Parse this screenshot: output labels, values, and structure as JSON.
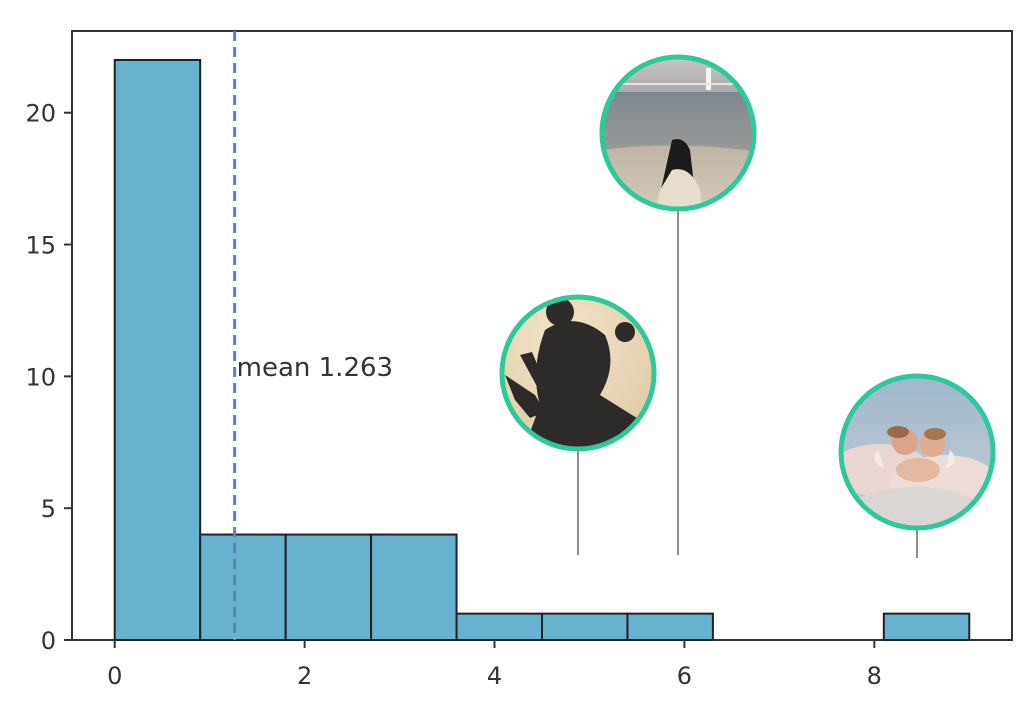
{
  "chart_data": {
    "type": "bar",
    "bins": [
      {
        "x0": 0.0,
        "x1": 0.9,
        "count": 22
      },
      {
        "x0": 0.9,
        "x1": 1.8,
        "count": 4
      },
      {
        "x0": 1.8,
        "x1": 2.7,
        "count": 4
      },
      {
        "x0": 2.7,
        "x1": 3.6,
        "count": 4
      },
      {
        "x0": 3.6,
        "x1": 4.5,
        "count": 1
      },
      {
        "x0": 4.5,
        "x1": 5.4,
        "count": 1
      },
      {
        "x0": 5.4,
        "x1": 6.3,
        "count": 1
      },
      {
        "x0": 6.3,
        "x1": 7.2,
        "count": 0
      },
      {
        "x0": 7.2,
        "x1": 8.1,
        "count": 0
      },
      {
        "x0": 8.1,
        "x1": 9.0,
        "count": 1
      }
    ],
    "xlim": [
      -0.45,
      9.45
    ],
    "ylim": [
      0,
      23.1
    ],
    "xticks": [
      0,
      2,
      4,
      6,
      8
    ],
    "yticks": [
      0,
      5,
      10,
      15,
      20
    ],
    "xtick_labels": [
      "0",
      "2",
      "4",
      "6",
      "8"
    ],
    "ytick_labels": [
      "0",
      "5",
      "10",
      "15",
      "20"
    ],
    "mean": 1.263,
    "mean_label": "mean 1.263",
    "bar_color": "#67b3cf",
    "mean_line_color": "#5b7fbd",
    "grid": false,
    "annotations": [
      {
        "kind": "photo",
        "subject": "person-at-beach",
        "x": 5.95,
        "y_anchor": 3.2,
        "ring_color": "#2ec99a"
      },
      {
        "kind": "photo",
        "subject": "shadow-peace-sign",
        "x": 4.88,
        "y_anchor": 3.2,
        "ring_color": "#2ec99a"
      },
      {
        "kind": "photo",
        "subject": "cherubs-in-clouds",
        "x": 8.5,
        "y_anchor": 3.1,
        "ring_color": "#2ec99a"
      }
    ]
  }
}
